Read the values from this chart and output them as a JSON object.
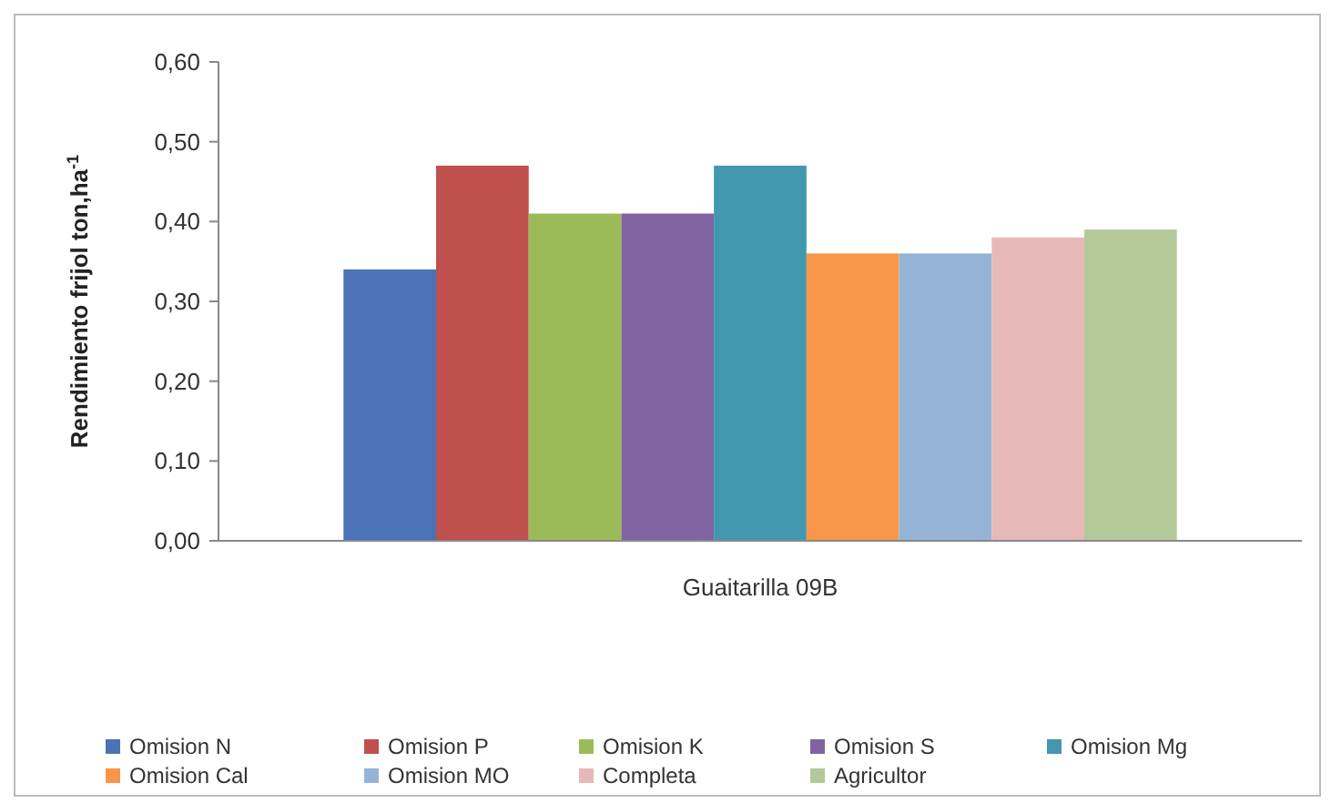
{
  "chart_data": {
    "type": "bar",
    "categories": [
      "Guaitarilla 09B"
    ],
    "ylabel": "Rendimiento frijol ton,ha$^{-1}$",
    "ylim": [
      0,
      0.6
    ],
    "yticks": [
      {
        "value": 0,
        "label": "0,00"
      },
      {
        "value": 0.1,
        "label": "0,10"
      },
      {
        "value": 0.2,
        "label": "0,20"
      },
      {
        "value": 0.3,
        "label": "0,30"
      },
      {
        "value": 0.4,
        "label": "0,40"
      },
      {
        "value": 0.5,
        "label": "0,50"
      },
      {
        "value": 0.6,
        "label": "0,60"
      }
    ],
    "grid": false,
    "legend": "bottom",
    "series": [
      {
        "name": "Omision N",
        "color": "#4a72b5",
        "values": [
          0.34
        ]
      },
      {
        "name": "Omision P",
        "color": "#c0504d",
        "values": [
          0.47
        ]
      },
      {
        "name": "Omision K",
        "color": "#9bbb59",
        "values": [
          0.41
        ]
      },
      {
        "name": "Omision S",
        "color": "#8064a2",
        "values": [
          0.41
        ]
      },
      {
        "name": "Omision Mg",
        "color": "#4198af",
        "values": [
          0.47
        ]
      },
      {
        "name": "Omision Cal",
        "color": "#f79646",
        "values": [
          0.36
        ]
      },
      {
        "name": "Omision MO",
        "color": "#95b3d7",
        "values": [
          0.36
        ]
      },
      {
        "name": "Completa",
        "color": "#e6b9b8",
        "values": [
          0.38
        ]
      },
      {
        "name": "Agricultor",
        "color": "#b3c99a",
        "values": [
          0.39
        ]
      }
    ]
  }
}
